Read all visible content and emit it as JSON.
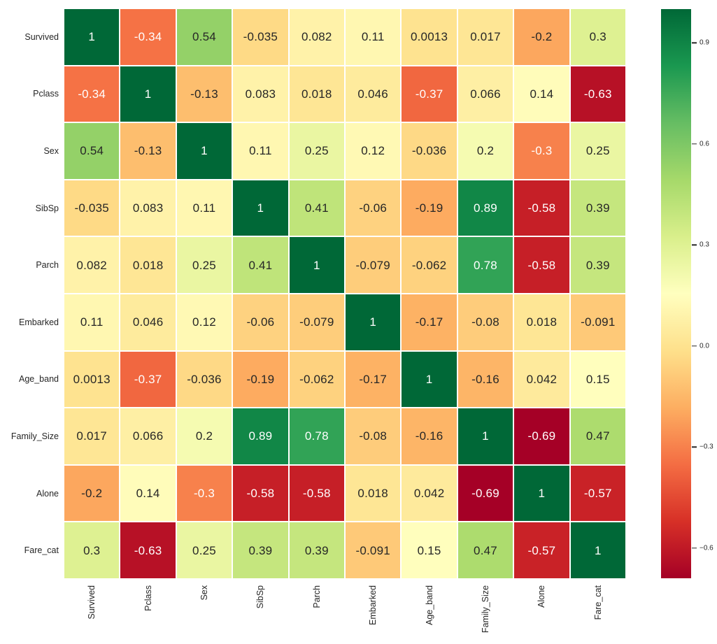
{
  "figure": {
    "background_color": "#ffffff",
    "cell_border_color": "#ffffff",
    "annot_color_dark": "#262626",
    "annot_color_light": "#ffffff",
    "tick_label_color": "#262626"
  },
  "chart_data": {
    "type": "heatmap",
    "title": "",
    "xlabel": "",
    "ylabel": "",
    "categories": [
      "Survived",
      "Pclass",
      "Sex",
      "SibSp",
      "Parch",
      "Embarked",
      "Age_band",
      "Family_Size",
      "Alone",
      "Fare_cat"
    ],
    "matrix": [
      [
        1,
        -0.34,
        0.54,
        -0.035,
        0.082,
        0.11,
        0.0013,
        0.017,
        -0.2,
        0.3
      ],
      [
        -0.34,
        1,
        -0.13,
        0.083,
        0.018,
        0.046,
        -0.37,
        0.066,
        0.14,
        -0.63
      ],
      [
        0.54,
        -0.13,
        1,
        0.11,
        0.25,
        0.12,
        -0.036,
        0.2,
        -0.3,
        0.25
      ],
      [
        -0.035,
        0.083,
        0.11,
        1,
        0.41,
        -0.06,
        -0.19,
        0.89,
        -0.58,
        0.39
      ],
      [
        0.082,
        0.018,
        0.25,
        0.41,
        1,
        -0.079,
        -0.062,
        0.78,
        -0.58,
        0.39
      ],
      [
        0.11,
        0.046,
        0.12,
        -0.06,
        -0.079,
        1,
        -0.17,
        -0.08,
        0.018,
        -0.091
      ],
      [
        0.0013,
        -0.37,
        -0.036,
        -0.19,
        -0.062,
        -0.17,
        1,
        -0.16,
        0.042,
        0.15
      ],
      [
        0.017,
        0.066,
        0.2,
        0.89,
        0.78,
        -0.08,
        -0.16,
        1,
        -0.69,
        0.47
      ],
      [
        -0.2,
        0.14,
        -0.3,
        -0.58,
        -0.58,
        0.018,
        0.042,
        -0.69,
        1,
        -0.57
      ],
      [
        0.3,
        -0.63,
        0.25,
        0.39,
        0.39,
        -0.091,
        0.15,
        0.47,
        -0.57,
        1
      ]
    ],
    "vmin": -0.69,
    "vmax": 1.0,
    "colormap_name": "RdYlGn",
    "colormap_stops": [
      "#a50026",
      "#d73027",
      "#f46d43",
      "#fdae61",
      "#fee08b",
      "#ffffbf",
      "#d9ef8b",
      "#a6d96a",
      "#66bd63",
      "#1a9850",
      "#006837"
    ],
    "legend_position": "right",
    "grid": false,
    "colorbar": {
      "ticks": [
        {
          "value": 0.9,
          "label": "0.9"
        },
        {
          "value": 0.6,
          "label": "0.6"
        },
        {
          "value": 0.3,
          "label": "0.3"
        },
        {
          "value": 0.0,
          "label": "0.0"
        },
        {
          "value": -0.3,
          "label": "−0.3"
        },
        {
          "value": -0.6,
          "label": "−0.6"
        }
      ]
    }
  }
}
